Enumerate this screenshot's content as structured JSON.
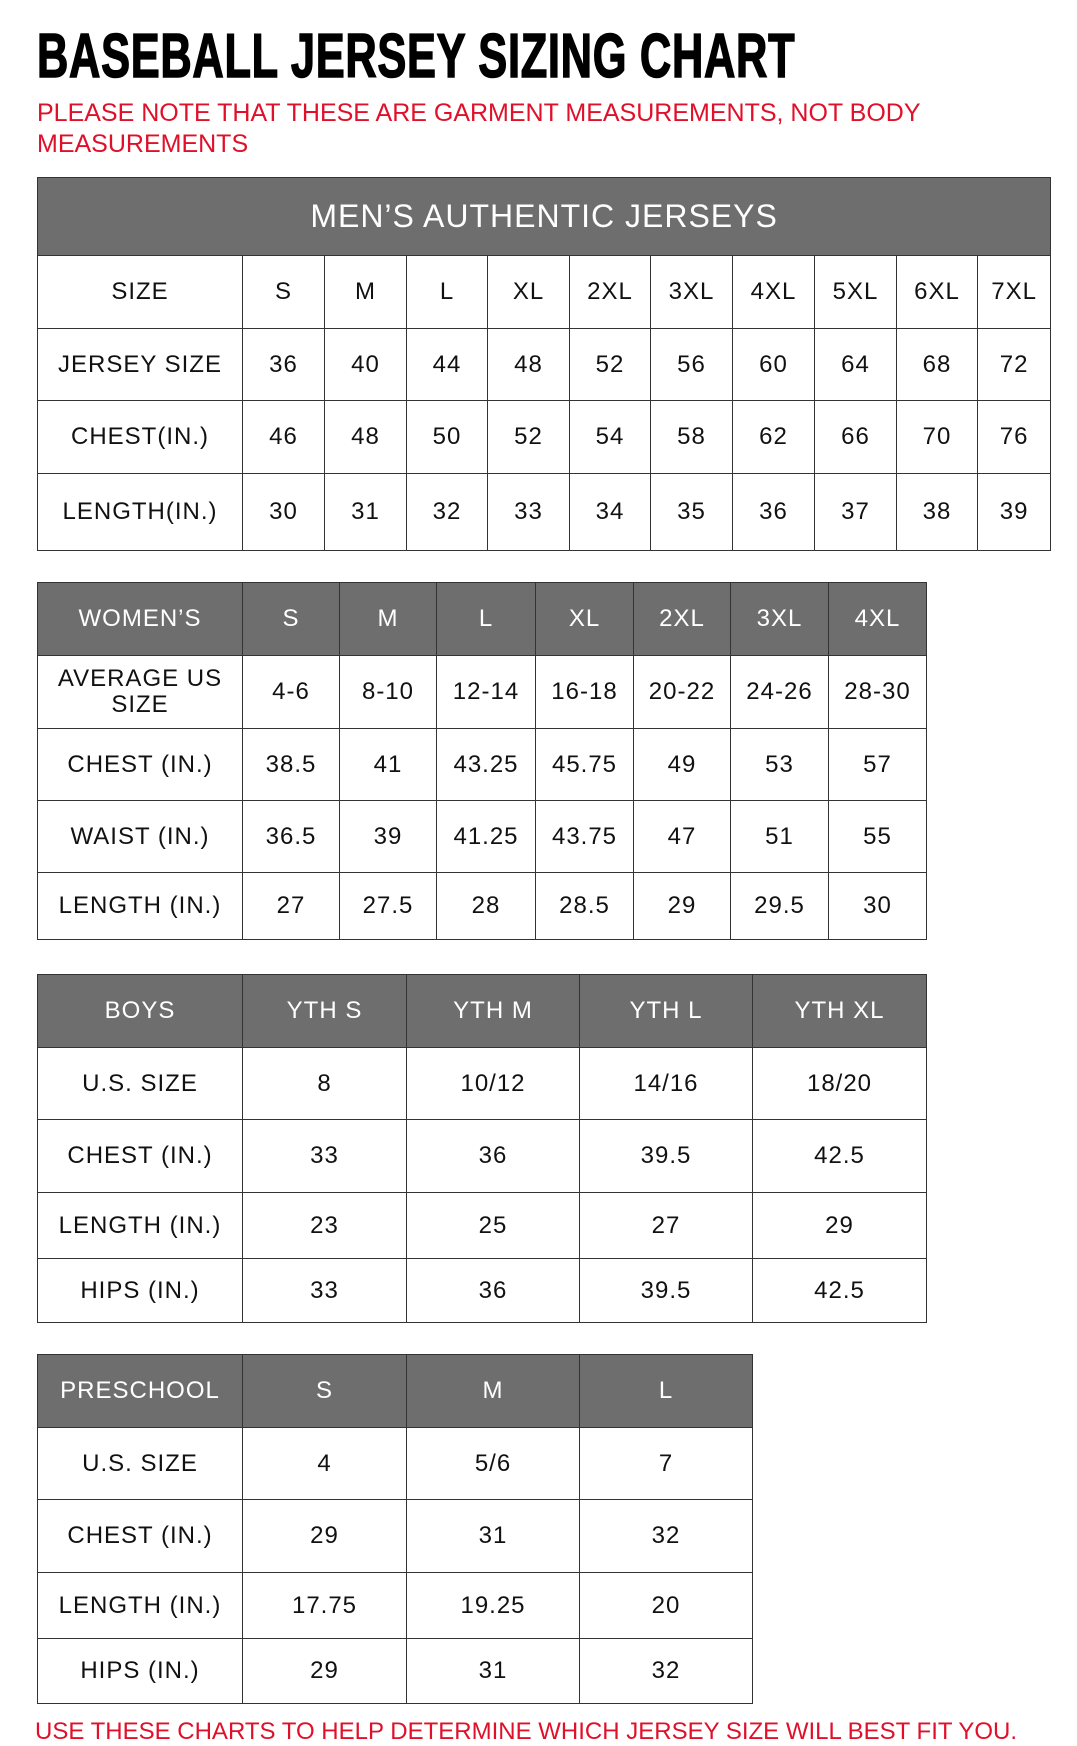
{
  "title": "BASEBALL JERSEY SIZING CHART",
  "note": "PLEASE NOTE THAT THESE ARE GARMENT MEASUREMENTS, NOT BODY MEASUREMENTS",
  "footer": "USE THESE CHARTS TO HELP DETERMINE WHICH JERSEY SIZE WILL BEST FIT YOU.",
  "colors": {
    "header_bg": "#6e6e6e",
    "accent_red": "#e0102a",
    "border": "#333333"
  },
  "mens": {
    "banner": "MEN’S AUTHENTIC JERSEYS",
    "header": [
      "SIZE",
      "S",
      "M",
      "L",
      "XL",
      "2XL",
      "3XL",
      "4XL",
      "5XL",
      "6XL",
      "7XL"
    ],
    "rows": [
      [
        "JERSEY SIZE",
        "36",
        "40",
        "44",
        "48",
        "52",
        "56",
        "60",
        "64",
        "68",
        "72"
      ],
      [
        "CHEST(IN.)",
        "46",
        "48",
        "50",
        "52",
        "54",
        "58",
        "62",
        "66",
        "70",
        "76"
      ],
      [
        "LENGTH(IN.)",
        "30",
        "31",
        "32",
        "33",
        "34",
        "35",
        "36",
        "37",
        "38",
        "39"
      ]
    ]
  },
  "womens": {
    "header": [
      "WOMEN’S",
      "S",
      "M",
      "L",
      "XL",
      "2XL",
      "3XL",
      "4XL"
    ],
    "rows": [
      [
        "AVERAGE US SIZE",
        "4-6",
        "8-10",
        "12-14",
        "16-18",
        "20-22",
        "24-26",
        "28-30"
      ],
      [
        "CHEST (IN.)",
        "38.5",
        "41",
        "43.25",
        "45.75",
        "49",
        "53",
        "57"
      ],
      [
        "WAIST (IN.)",
        "36.5",
        "39",
        "41.25",
        "43.75",
        "47",
        "51",
        "55"
      ],
      [
        "LENGTH (IN.)",
        "27",
        "27.5",
        "28",
        "28.5",
        "29",
        "29.5",
        "30"
      ]
    ]
  },
  "boys": {
    "header": [
      "BOYS",
      "YTH S",
      "YTH M",
      "YTH L",
      "YTH XL"
    ],
    "rows": [
      [
        "U.S. SIZE",
        "8",
        "10/12",
        "14/16",
        "18/20"
      ],
      [
        "CHEST (IN.)",
        "33",
        "36",
        "39.5",
        "42.5"
      ],
      [
        "LENGTH (IN.)",
        "23",
        "25",
        "27",
        "29"
      ],
      [
        "HIPS (IN.)",
        "33",
        "36",
        "39.5",
        "42.5"
      ]
    ]
  },
  "preschool": {
    "header": [
      "PRESCHOOL",
      "S",
      "M",
      "L"
    ],
    "rows": [
      [
        "U.S. SIZE",
        "4",
        "5/6",
        "7"
      ],
      [
        "CHEST (IN.)",
        "29",
        "31",
        "32"
      ],
      [
        "LENGTH (IN.)",
        "17.75",
        "19.25",
        "20"
      ],
      [
        "HIPS (IN.)",
        "29",
        "31",
        "32"
      ]
    ]
  }
}
